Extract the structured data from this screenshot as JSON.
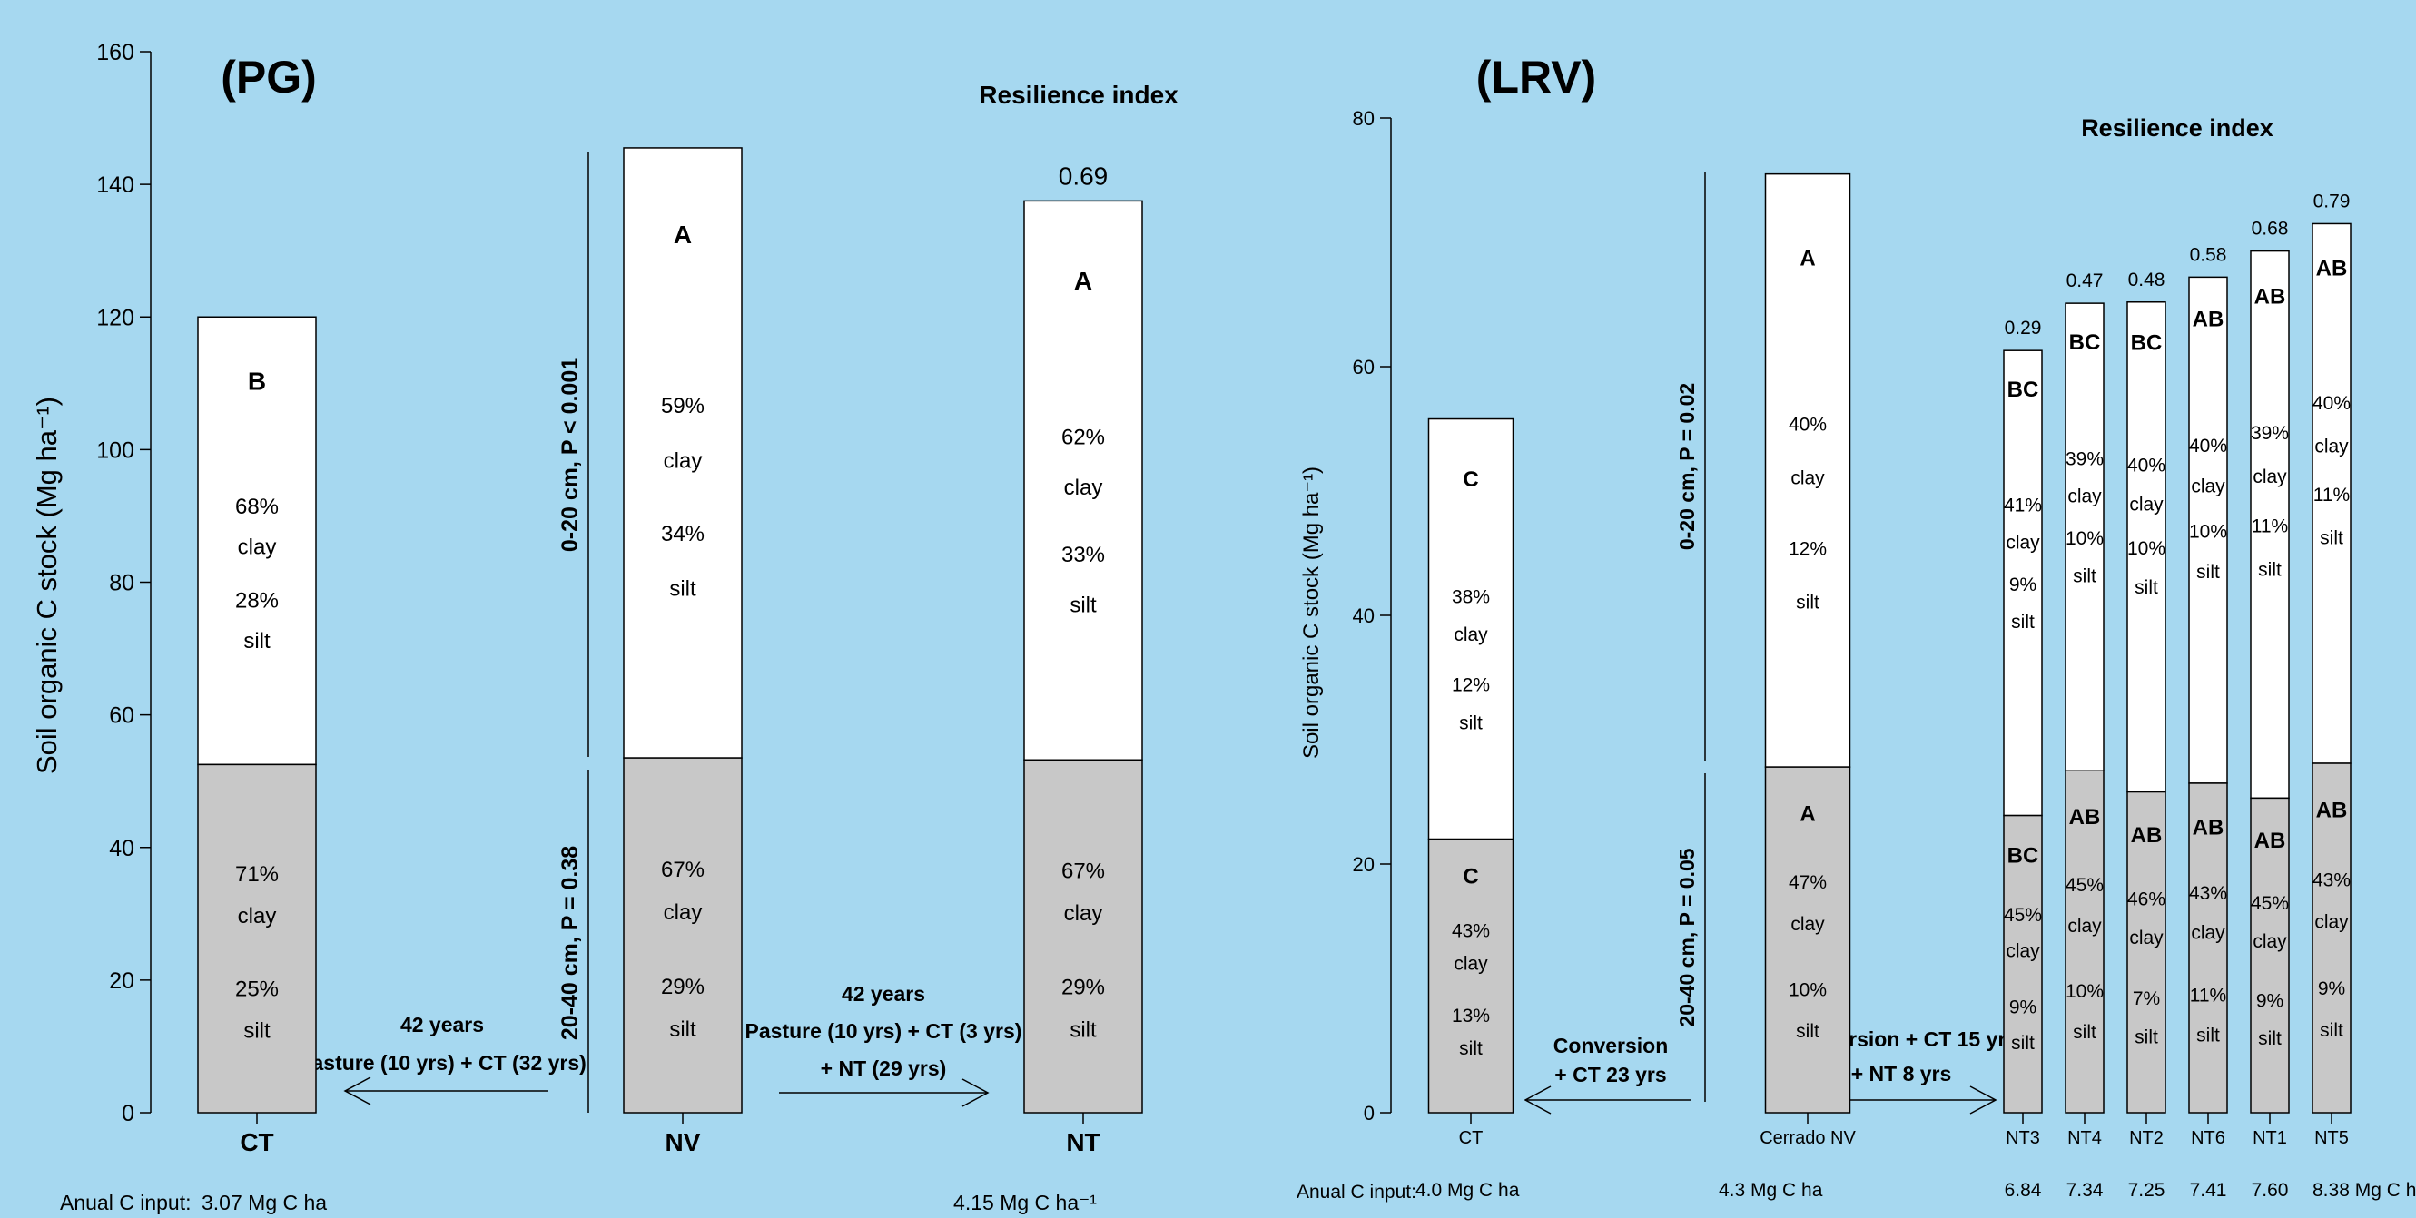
{
  "colors": {
    "background": "#a6d8f0",
    "top_layer": "#ffffff",
    "bottom_layer": "#c8c8c8",
    "stroke": "#000000"
  },
  "chart_data": [
    {
      "type": "bar",
      "panel_title": "(PG)",
      "ylabel": "Soil organic C stock (Mg ha⁻¹)",
      "ylim": [
        0,
        160
      ],
      "yticks": [
        "0",
        "20",
        "40",
        "60",
        "80",
        "100",
        "120",
        "140",
        "160"
      ],
      "resilience_title": "Resilience index",
      "input_label": "Anual C input:",
      "bars": [
        {
          "name": "CT",
          "total": 120,
          "bottom": 52.5,
          "resilience": "",
          "top_letter": "B",
          "top_clay": "68%",
          "top_clay_word": "clay",
          "top_silt": "28%",
          "top_silt_word": "silt",
          "bottom_letter": "",
          "bottom_clay": "71%",
          "bottom_clay_word": "clay",
          "bottom_silt": "25%",
          "bottom_silt_word": "silt",
          "input": "3.07 Mg C ha"
        },
        {
          "name": "NV",
          "total": 145.5,
          "bottom": 53.5,
          "resilience": "",
          "top_letter": "A",
          "top_clay": "59%",
          "top_clay_word": "clay",
          "top_silt": "34%",
          "top_silt_word": "silt",
          "bottom_letter": "",
          "bottom_clay": "67%",
          "bottom_clay_word": "clay",
          "bottom_silt": "29%",
          "bottom_silt_word": "silt",
          "input": ""
        },
        {
          "name": "NT",
          "total": 137.5,
          "bottom": 53.2,
          "resilience": "0.69",
          "top_letter": "A",
          "top_clay": "62%",
          "top_clay_word": "clay",
          "top_silt": "33%",
          "top_silt_word": "silt",
          "bottom_letter": "",
          "bottom_clay": "67%",
          "bottom_clay_word": "clay",
          "bottom_silt": "29%",
          "bottom_silt_word": "silt",
          "input": "4.15 Mg C ha⁻¹"
        }
      ],
      "depth_labels": {
        "top": "0-20 cm, P < 0.001",
        "bottom": "20-40 cm, P = 0.38"
      },
      "arrows": {
        "left": [
          "42 years",
          "Pasture (10 yrs) + CT (32 yrs)"
        ],
        "right": [
          "42 years",
          "Pasture (10 yrs) + CT (3 yrs)",
          "+ NT (29 yrs)"
        ]
      }
    },
    {
      "type": "bar",
      "panel_title": "(LRV)",
      "ylabel": "Soil organic C stock (Mg ha⁻¹)",
      "ylim": [
        0,
        80
      ],
      "yticks": [
        "0",
        "20",
        "40",
        "60",
        "80"
      ],
      "resilience_title": "Resilience index",
      "input_label": "Anual C input:",
      "bars": [
        {
          "name": "CT",
          "total": 55.8,
          "bottom": 22,
          "resilience": "",
          "top_letter": "C",
          "top_clay": "38%",
          "top_clay_word": "clay",
          "top_silt": "12%",
          "top_silt_word": "silt",
          "bottom_letter": "C",
          "bottom_clay": "43%",
          "bottom_clay_word": "clay",
          "bottom_silt": "13%",
          "bottom_silt_word": "silt",
          "input": "4.0 Mg C ha"
        },
        {
          "name": "Cerrado NV",
          "total": 75.5,
          "bottom": 27.8,
          "resilience": "",
          "top_letter": "A",
          "top_clay": "40%",
          "top_clay_word": "clay",
          "top_silt": "12%",
          "top_silt_word": "silt",
          "bottom_letter": "A",
          "bottom_clay": "47%",
          "bottom_clay_word": "clay",
          "bottom_silt": "10%",
          "bottom_silt_word": "silt",
          "input": "4.3 Mg C ha"
        },
        {
          "name": "NT3",
          "total": 61.3,
          "bottom": 23.9,
          "resilience": "0.29",
          "top_letter": "BC",
          "top_clay": "41%",
          "top_clay_word": "clay",
          "top_silt": "9%",
          "top_silt_word": "silt",
          "bottom_letter": "BC",
          "bottom_clay": "45%",
          "bottom_clay_word": "clay",
          "bottom_silt": "9%",
          "bottom_silt_word": "silt",
          "input": "6.84"
        },
        {
          "name": "NT4",
          "total": 65.1,
          "bottom": 27.5,
          "resilience": "0.47",
          "top_letter": "BC",
          "top_clay": "39%",
          "top_clay_word": "clay",
          "top_silt": "10%",
          "top_silt_word": "silt",
          "bottom_letter": "AB",
          "bottom_clay": "45%",
          "bottom_clay_word": "clay",
          "bottom_silt": "10%",
          "bottom_silt_word": "silt",
          "input": "7.34"
        },
        {
          "name": "NT2",
          "total": 65.2,
          "bottom": 25.8,
          "resilience": "0.48",
          "top_letter": "BC",
          "top_clay": "40%",
          "top_clay_word": "clay",
          "top_silt": "10%",
          "top_silt_word": "silt",
          "bottom_letter": "AB",
          "bottom_clay": "46%",
          "bottom_clay_word": "clay",
          "bottom_silt": "7%",
          "bottom_silt_word": "silt",
          "input": "7.25"
        },
        {
          "name": "NT6",
          "total": 67.2,
          "bottom": 26.5,
          "resilience": "0.58",
          "top_letter": "AB",
          "top_clay": "40%",
          "top_clay_word": "clay",
          "top_silt": "10%",
          "top_silt_word": "silt",
          "bottom_letter": "AB",
          "bottom_clay": "43%",
          "bottom_clay_word": "clay",
          "bottom_silt": "11%",
          "bottom_silt_word": "silt",
          "input": "7.41"
        },
        {
          "name": "NT1",
          "total": 69.3,
          "bottom": 25.3,
          "resilience": "0.68",
          "top_letter": "AB",
          "top_clay": "39%",
          "top_clay_word": "clay",
          "top_silt": "11%",
          "top_silt_word": "silt",
          "bottom_letter": "AB",
          "bottom_clay": "45%",
          "bottom_clay_word": "clay",
          "bottom_silt": "9%",
          "bottom_silt_word": "silt",
          "input": "7.60"
        },
        {
          "name": "NT5",
          "total": 71.5,
          "bottom": 28.1,
          "resilience": "0.79",
          "top_letter": "AB",
          "top_clay": "40%",
          "top_clay_word": "clay",
          "top_silt": "11%",
          "top_silt_word": "silt",
          "bottom_letter": "AB",
          "bottom_clay": "43%",
          "bottom_clay_word": "clay",
          "bottom_silt": "9%",
          "bottom_silt_word": "silt",
          "input": "8.38 Mg C ha"
        }
      ],
      "depth_labels": {
        "top": "0-20 cm, P = 0.02",
        "bottom": "20-40 cm, P = 0.05"
      },
      "arrows": {
        "left": [
          "Conversion",
          "+ CT 23 yrs"
        ],
        "right": [
          "Conversion + CT 15 yrs",
          "+ NT 8 yrs"
        ]
      }
    }
  ]
}
